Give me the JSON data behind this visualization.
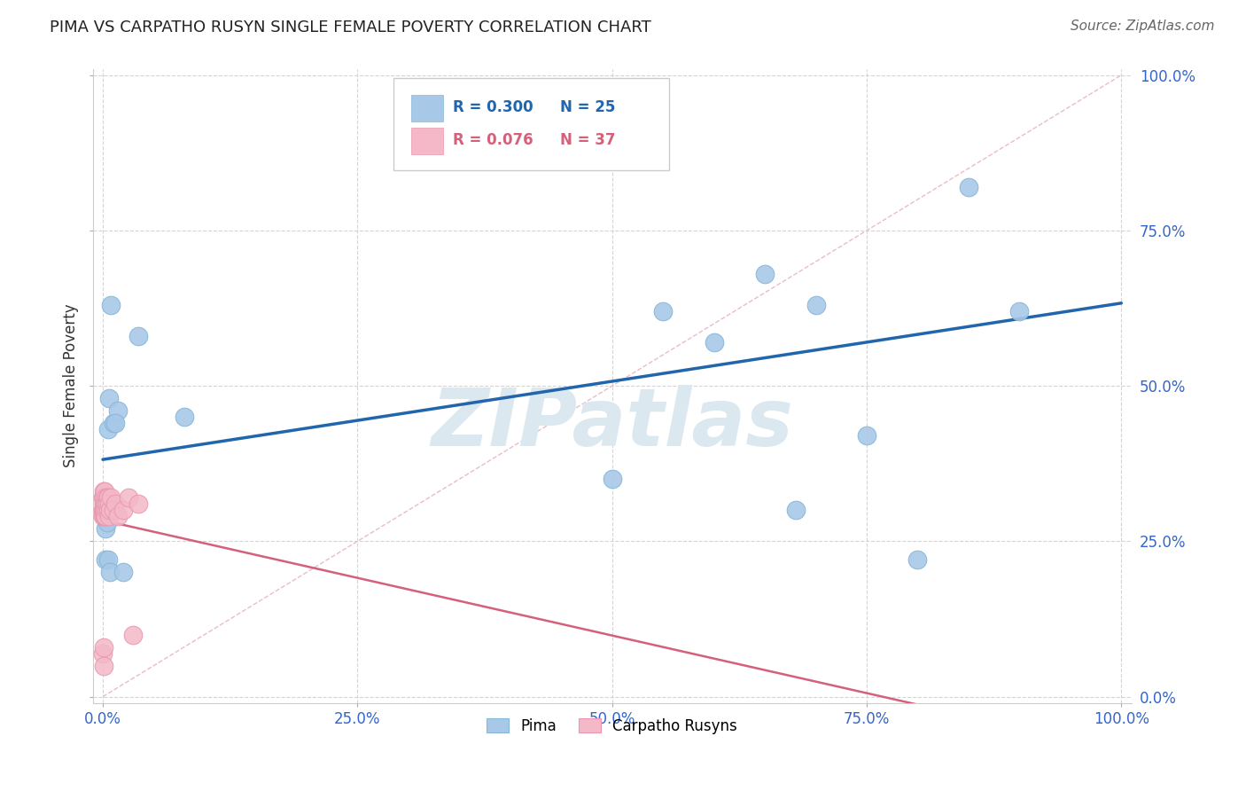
{
  "title": "PIMA VS CARPATHO RUSYN SINGLE FEMALE POVERTY CORRELATION CHART",
  "source": "Source: ZipAtlas.com",
  "ylabel_text": "Single Female Poverty",
  "legend_label_blue": "Pima",
  "legend_label_pink": "Carpatho Rusyns",
  "R_blue": 0.3,
  "N_blue": 25,
  "R_pink": 0.076,
  "N_pink": 37,
  "pima_x": [
    0.3,
    0.4,
    0.5,
    0.6,
    0.8,
    1.0,
    1.5,
    3.5,
    8.0,
    0.3,
    0.5,
    0.7,
    1.2,
    2.0,
    50.0,
    55.0,
    60.0,
    65.0,
    70.0,
    75.0,
    80.0,
    85.0,
    90.0,
    52.0,
    68.0
  ],
  "pima_y": [
    27.0,
    28.0,
    43.0,
    48.0,
    63.0,
    44.0,
    46.0,
    58.0,
    45.0,
    22.0,
    22.0,
    20.0,
    44.0,
    20.0,
    35.0,
    62.0,
    57.0,
    68.0,
    63.0,
    42.0,
    22.0,
    82.0,
    62.0,
    95.0,
    30.0
  ],
  "rusyn_x": [
    0.02,
    0.03,
    0.04,
    0.05,
    0.06,
    0.07,
    0.08,
    0.09,
    0.1,
    0.12,
    0.13,
    0.15,
    0.17,
    0.18,
    0.2,
    0.22,
    0.25,
    0.3,
    0.35,
    0.4,
    0.45,
    0.5,
    0.55,
    0.6,
    0.65,
    0.7,
    0.8,
    1.0,
    1.2,
    1.5,
    2.0,
    2.5,
    3.5,
    0.04,
    0.06,
    0.08,
    3.0
  ],
  "rusyn_y": [
    30.0,
    32.0,
    29.0,
    31.0,
    30.0,
    33.0,
    29.0,
    31.0,
    30.0,
    32.0,
    30.0,
    31.0,
    29.0,
    33.0,
    30.0,
    32.0,
    29.0,
    31.0,
    30.0,
    32.0,
    31.0,
    30.0,
    32.0,
    29.0,
    31.0,
    30.0,
    32.0,
    30.0,
    31.0,
    29.0,
    30.0,
    32.0,
    31.0,
    7.0,
    5.0,
    8.0,
    10.0
  ],
  "background_color": "#ffffff",
  "blue_scatter_color": "#a8c8e8",
  "pink_scatter_color": "#f4b8c8",
  "blue_line_color": "#2166ac",
  "pink_line_color": "#d4607a",
  "diag_color": "#e0a0b0",
  "grid_color": "#d0d0d0",
  "title_color": "#222222",
  "source_color": "#666666",
  "axis_tick_color": "#3366cc",
  "ylabel_color": "#333333",
  "watermark_color": "#dce8f0",
  "watermark_text": "ZIPatlas"
}
